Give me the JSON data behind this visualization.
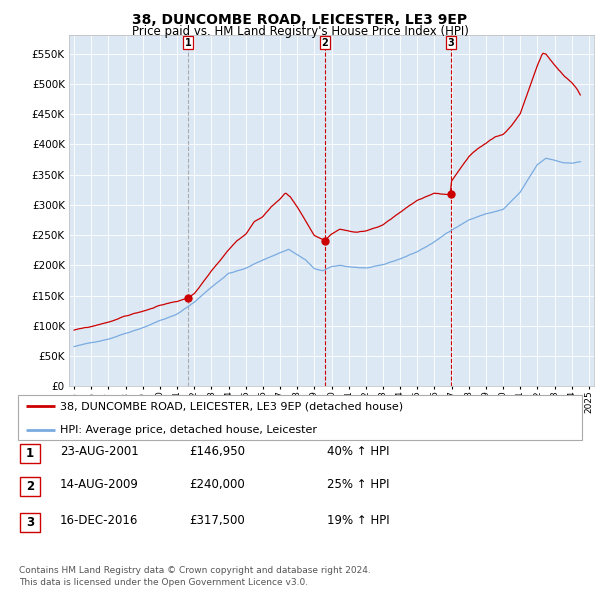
{
  "title": "38, DUNCOMBE ROAD, LEICESTER, LE3 9EP",
  "subtitle": "Price paid vs. HM Land Registry's House Price Index (HPI)",
  "ylim": [
    0,
    580000
  ],
  "yticks": [
    0,
    50000,
    100000,
    150000,
    200000,
    250000,
    300000,
    350000,
    400000,
    450000,
    500000,
    550000
  ],
  "xlim": [
    1994.7,
    2025.3
  ],
  "background_color": "#dce9f5",
  "grid_color": "#ffffff",
  "sale_color": "#cc0000",
  "hpi_color": "#7aabe0",
  "transactions": [
    {
      "date_num": 2001.64,
      "price": 146950,
      "label": "1",
      "vline_style": "--",
      "vline_color": "#aaaaaa",
      "vline_lw": 0.8
    },
    {
      "date_num": 2009.62,
      "price": 240000,
      "label": "2",
      "vline_style": "--",
      "vline_color": "#cc0000",
      "vline_lw": 0.8
    },
    {
      "date_num": 2016.96,
      "price": 317500,
      "label": "3",
      "vline_style": "--",
      "vline_color": "#cc0000",
      "vline_lw": 0.8
    }
  ],
  "legend_sale_label": "38, DUNCOMBE ROAD, LEICESTER, LE3 9EP (detached house)",
  "legend_hpi_label": "HPI: Average price, detached house, Leicester",
  "table_rows": [
    {
      "num": "1",
      "date": "23-AUG-2001",
      "price": "£146,950",
      "change": "40% ↑ HPI"
    },
    {
      "num": "2",
      "date": "14-AUG-2009",
      "price": "£240,000",
      "change": "25% ↑ HPI"
    },
    {
      "num": "3",
      "date": "16-DEC-2016",
      "price": "£317,500",
      "change": "19% ↑ HPI"
    }
  ],
  "footnote": "Contains HM Land Registry data © Crown copyright and database right 2024.\nThis data is licensed under the Open Government Licence v3.0."
}
